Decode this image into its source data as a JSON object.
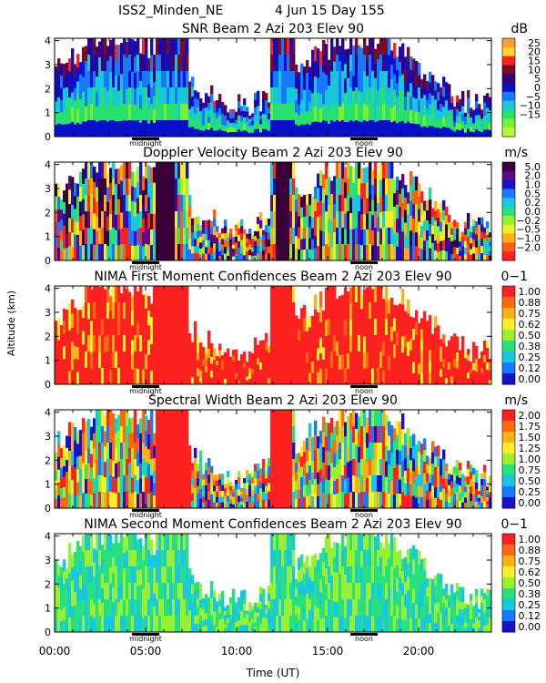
{
  "header": {
    "station": "ISS2_Minden_NE",
    "date": "4 Jun 15 Day 155"
  },
  "common": {
    "ylabel": "Altitude (km)",
    "xlabel": "Time (UT)",
    "xticks": [
      "00:00",
      "05:00",
      "10:00",
      "15:00",
      "20:00"
    ],
    "xtick_hours": [
      0,
      5,
      10,
      15,
      20
    ],
    "xlim_hours": [
      0,
      24
    ],
    "markers": [
      {
        "label": "midnight",
        "hour": 5.0
      },
      {
        "label": "noon",
        "hour": 17.0
      }
    ],
    "yticks": [
      "0",
      "1",
      "2",
      "3",
      "4"
    ]
  },
  "chart_data": [
    {
      "type": "heatmap",
      "title": "SNR Beam 2 Azi 203 Elev 90",
      "unit": "dB",
      "ylim": [
        0,
        4.1
      ],
      "colorbar": {
        "labels": [
          "25",
          "20",
          "15",
          "10",
          "5",
          "0",
          "−5",
          "−10",
          "−15"
        ],
        "colors": [
          "#ff9c2c",
          "#ffd22c",
          "#ff2020",
          "#7a0a28",
          "#3a007a",
          "#0a10c8",
          "#1878ff",
          "#18c8d8",
          "#28e070",
          "#78f030",
          "#b8f838"
        ]
      }
    },
    {
      "type": "heatmap",
      "title": "Doppler Velocity Beam 2 Azi 203 Elev 90",
      "unit": "m/s",
      "ylim": [
        0,
        4.1
      ],
      "colorbar": {
        "labels": [
          "5.0",
          "2.0",
          "1.0",
          "0.5",
          "0.2",
          "0.0",
          "−0.2",
          "−0.5",
          "−1.0",
          "−2.0"
        ],
        "colors": [
          "#3a003a",
          "#5a0a8a",
          "#1a10c8",
          "#1878ff",
          "#18c8e0",
          "#28e080",
          "#98f030",
          "#f0f028",
          "#ffb018",
          "#ff6010",
          "#ff2020"
        ]
      }
    },
    {
      "type": "heatmap",
      "title": "NIMA First Moment Confidences Beam 2 Azi 203 Elev 90",
      "unit": "0−1",
      "ylim": [
        0,
        4.1
      ],
      "colorbar": {
        "labels": [
          "1.00",
          "0.88",
          "0.75",
          "0.62",
          "0.50",
          "0.38",
          "0.25",
          "0.12",
          "0.00"
        ],
        "colors": [
          "#ff2020",
          "#ff6810",
          "#ffb018",
          "#f8f028",
          "#98f030",
          "#28e080",
          "#18c8e0",
          "#1878ff",
          "#1a10c8"
        ]
      }
    },
    {
      "type": "heatmap",
      "title": "Spectral Width Beam 2 Azi 203 Elev 90",
      "unit": "m/s",
      "ylim": [
        0,
        4.1
      ],
      "colorbar": {
        "labels": [
          "2.00",
          "1.75",
          "1.50",
          "1.25",
          "1.00",
          "0.75",
          "0.50",
          "0.25",
          "0.00"
        ],
        "colors": [
          "#ff2020",
          "#ff6810",
          "#ffb018",
          "#f8f028",
          "#98f030",
          "#28e080",
          "#18c8e0",
          "#1878ff",
          "#1a10c8"
        ]
      }
    },
    {
      "type": "heatmap",
      "title": "NIMA Second Moment Confidences Beam 2 Azi 203 Elev 90",
      "unit": "0−1",
      "ylim": [
        0,
        4.1
      ],
      "colorbar": {
        "labels": [
          "1.00",
          "0.88",
          "0.75",
          "0.62",
          "0.50",
          "0.38",
          "0.25",
          "0.12",
          "0.00"
        ],
        "colors": [
          "#ff2020",
          "#ff6810",
          "#ffb018",
          "#f8f028",
          "#98f030",
          "#28e080",
          "#18c8e0",
          "#1878ff",
          "#1a10c8"
        ]
      }
    }
  ]
}
